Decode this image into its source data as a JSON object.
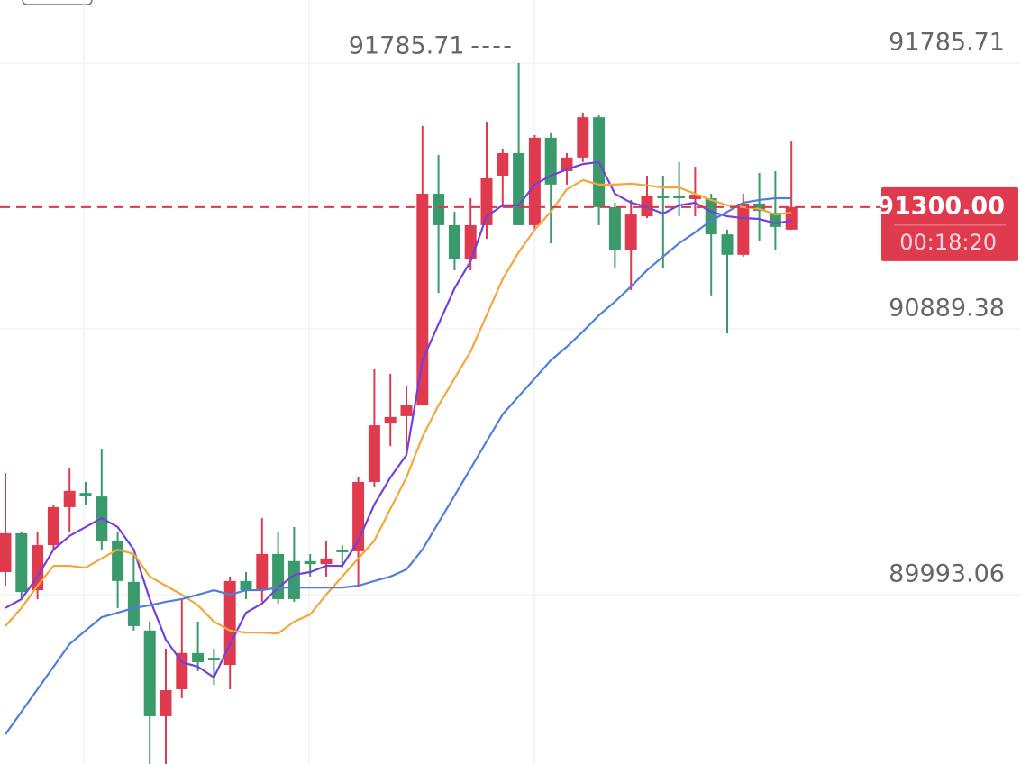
{
  "chart_data": {
    "type": "candlestick",
    "up_color": "#e03a4e",
    "down_color": "#3a9a6b",
    "ylim": [
      89421.8,
      91998.4
    ],
    "yticks": [
      91785.71,
      90889.38,
      89993.06
    ],
    "grid": true,
    "open": [
      90069,
      90200,
      90008,
      90160,
      90288,
      90336,
      90324,
      90175,
      90036,
      89872,
      89583,
      89674,
      89796,
      89780,
      89756,
      90039,
      90008,
      90130,
      90106,
      90106,
      90096,
      90145,
      90139,
      90373,
      90570,
      90595,
      90631,
      91345,
      91239,
      91126,
      91239,
      91406,
      91482,
      91239,
      91534,
      91421,
      91467,
      91603,
      91300,
      91154,
      91269,
      91339,
      91339,
      91327,
      91330,
      91208,
      91139,
      91312,
      91281,
      91224
    ],
    "high": [
      90403,
      90206,
      90206,
      90297,
      90418,
      90373,
      90485,
      90206,
      90130,
      89902,
      89811,
      89978,
      89902,
      89811,
      90054,
      90069,
      90251,
      90206,
      90221,
      90130,
      90175,
      90160,
      90388,
      90753,
      90738,
      90698,
      91573,
      91476,
      91284,
      91330,
      91588,
      91497,
      91785.71,
      91543,
      91549,
      91482,
      91619,
      91609,
      91315,
      91324,
      91406,
      91406,
      91452,
      91436,
      91345,
      91224,
      91345,
      91415,
      91421,
      91521
    ],
    "low": [
      90023,
      89978,
      89978,
      90145,
      90206,
      90297,
      90145,
      89948,
      89872,
      89422,
      89422,
      89644,
      89735,
      89689,
      89674,
      89978,
      89969,
      89963,
      89969,
      90054,
      90054,
      90084,
      90023,
      90358,
      90494,
      90479,
      90631,
      91011,
      91087,
      91087,
      91193,
      91300,
      91239,
      91224,
      91178,
      91376,
      91452,
      91239,
      91093,
      91020,
      91263,
      91096,
      91269,
      91269,
      91002,
      90874,
      91133,
      91184,
      91154,
      91224
    ],
    "close": [
      90200,
      90002,
      90160,
      90288,
      90343,
      90327,
      90175,
      90039,
      89887,
      89583,
      89671,
      89796,
      89765,
      89771,
      90039,
      90008,
      90130,
      89978,
      89978,
      90096,
      90115,
      90136,
      90373,
      90564,
      90592,
      90631,
      91345,
      91239,
      91126,
      91239,
      91397,
      91482,
      91239,
      91534,
      91376,
      91467,
      91603,
      91300,
      91154,
      91275,
      91336,
      91330,
      91330,
      91342,
      91208,
      91139,
      91312,
      91287,
      91233,
      91300
    ],
    "ma_lines": [
      {
        "color": "#7340e0",
        "values": [
          89948,
          89978,
          90054,
          90145,
          90191,
          90221,
          90251,
          90221,
          90145,
          89978,
          89841,
          89765,
          89750,
          89714,
          89826,
          89932,
          89963,
          90017,
          90060,
          90069,
          90090,
          90090,
          90175,
          90297,
          90388,
          90464,
          90783,
          90905,
          91026,
          91117,
          91269,
          91306,
          91306,
          91376,
          91406,
          91427,
          91445,
          91452,
          91345,
          91315,
          91300,
          91278,
          91306,
          91315,
          91284,
          91269,
          91263,
          91260,
          91245,
          91254
        ]
      },
      {
        "color": "#f5a53a",
        "values": [
          89887,
          89948,
          90023,
          90090,
          90090,
          90084,
          90115,
          90145,
          90130,
          90054,
          90023,
          89993,
          89957,
          89902,
          89872,
          89865,
          89865,
          89862,
          89902,
          89926,
          89993,
          90054,
          90115,
          90175,
          90282,
          90388,
          90525,
          90631,
          90722,
          90813,
          90935,
          91057,
          91148,
          91224,
          91284,
          91360,
          91391,
          91376,
          91376,
          91379,
          91373,
          91366,
          91366,
          91345,
          91324,
          91306,
          91300,
          91294,
          91275,
          91281
        ]
      },
      {
        "color": "#4f7fd9",
        "values": [
          89522,
          89598,
          89674,
          89750,
          89826,
          89872,
          89917,
          89932,
          89948,
          89957,
          89969,
          89978,
          89993,
          90008,
          89993,
          90008,
          90008,
          90017,
          90017,
          90017,
          90017,
          90017,
          90023,
          90039,
          90054,
          90078,
          90145,
          90236,
          90327,
          90418,
          90510,
          90601,
          90662,
          90722,
          90783,
          90829,
          90880,
          90935,
          90981,
          91032,
          91087,
          91133,
          91178,
          91215,
          91254,
          91284,
          91315,
          91324,
          91330,
          91330
        ]
      }
    ],
    "current_price": {
      "value": 91300,
      "label": "91300.00"
    },
    "countdown": "00:18:20"
  }
}
